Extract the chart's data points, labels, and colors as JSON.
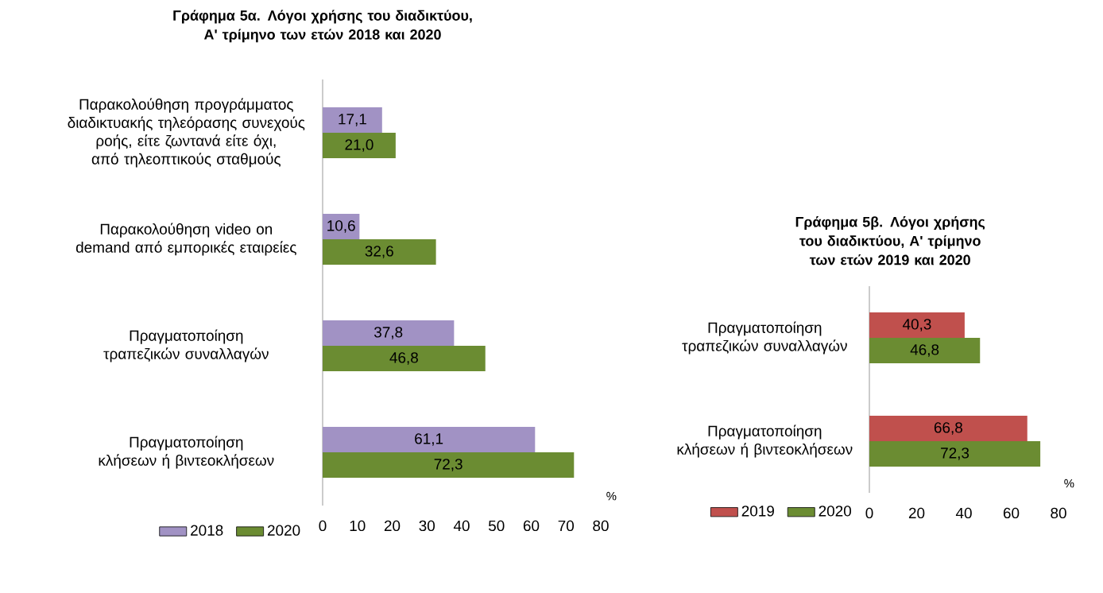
{
  "chart_data": [
    {
      "type": "bar",
      "orientation": "horizontal",
      "title": "Γράφημα 5α. Λόγοι χρήσης του διαδικτύου, Α' τρίμηνο των ετών 2018 και 2020",
      "categories": [
        "Παρακολούθηση προγράμματος διαδικτυακής τηλεόρασης συνεχούς ροής, είτε ζωντανά είτε όχι, από τηλεοπτικούς σταθμούς",
        "Παρακολούθηση video on demand από εμπορικές εταιρείες",
        "Πραγματοποίηση τραπεζικών συναλλαγών",
        "Πραγματοποίηση κλήσεων ή βιντεοκλήσεων"
      ],
      "series": [
        {
          "name": "2018",
          "color": "#a192c4",
          "values": [
            17.1,
            10.6,
            37.8,
            61.1
          ],
          "value_labels": [
            "17,1",
            "10,6",
            "37,8",
            "61,1"
          ]
        },
        {
          "name": "2020",
          "color": "#6b8c32",
          "values": [
            21.0,
            32.6,
            46.8,
            72.3
          ],
          "value_labels": [
            "21,0",
            "32,6",
            "46,8",
            "72,3"
          ]
        }
      ],
      "xlabel": "%",
      "xlim": [
        0,
        80
      ],
      "xticks": [
        0,
        10,
        20,
        30,
        40,
        50,
        60,
        70,
        80
      ],
      "legend": "bottom left"
    },
    {
      "type": "bar",
      "orientation": "horizontal",
      "title": "Γράφημα 5β. Λόγοι χρήσης του διαδικτύου, Α' τρίμηνο των ετών 2019 και 2020",
      "categories": [
        "Πραγματοποίηση τραπεζικών συναλλαγών",
        "Πραγματοποίηση κλήσεων ή βιντεοκλήσεων"
      ],
      "series": [
        {
          "name": "2019",
          "color": "#c0504d",
          "values": [
            40.3,
            66.8
          ],
          "value_labels": [
            "40,3",
            "66,8"
          ]
        },
        {
          "name": "2020",
          "color": "#6b8c32",
          "values": [
            46.8,
            72.3
          ],
          "value_labels": [
            "46,8",
            "72,3"
          ]
        }
      ],
      "xlabel": "%",
      "xlim": [
        0,
        80
      ],
      "xticks": [
        0,
        20,
        40,
        60,
        80
      ],
      "legend": "bottom left"
    }
  ]
}
